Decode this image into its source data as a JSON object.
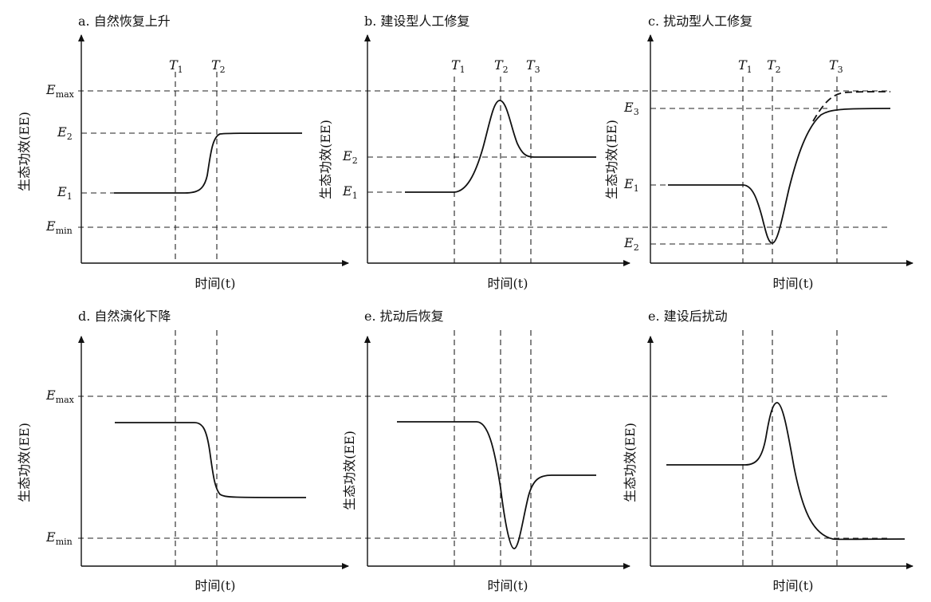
{
  "xlabel": "时间(t)",
  "ylabel": "生态功效(EE)",
  "guides": {
    "emax": {
      "base": "E",
      "sub": "max"
    },
    "emin": {
      "base": "E",
      "sub": "min"
    }
  },
  "panels": [
    {
      "title": "a. 自然恢复上升",
      "t_labels": [
        {
          "base": "T",
          "sub": "1"
        },
        {
          "base": "T",
          "sub": "2"
        }
      ],
      "e_labels": [
        {
          "base": "E",
          "sub": "2"
        },
        {
          "base": "E",
          "sub": "1"
        }
      ]
    },
    {
      "title": "b. 建设型人工修复",
      "t_labels": [
        {
          "base": "T",
          "sub": "1"
        },
        {
          "base": "T",
          "sub": "2"
        },
        {
          "base": "T",
          "sub": "3"
        }
      ],
      "e_labels": [
        {
          "base": "E",
          "sub": "2"
        },
        {
          "base": "E",
          "sub": "1"
        }
      ]
    },
    {
      "title": "c. 扰动型人工修复",
      "t_labels": [
        {
          "base": "T",
          "sub": "1"
        },
        {
          "base": "T",
          "sub": "2"
        },
        {
          "base": "T",
          "sub": "3"
        }
      ],
      "e_labels": [
        {
          "base": "E",
          "sub": "3"
        },
        {
          "base": "E",
          "sub": "1"
        },
        {
          "base": "E",
          "sub": "2"
        }
      ]
    },
    {
      "title": "d. 自然演化下降"
    },
    {
      "title": "e. 扰动后恢复"
    },
    {
      "title": "e. 建设后扰动"
    }
  ]
}
